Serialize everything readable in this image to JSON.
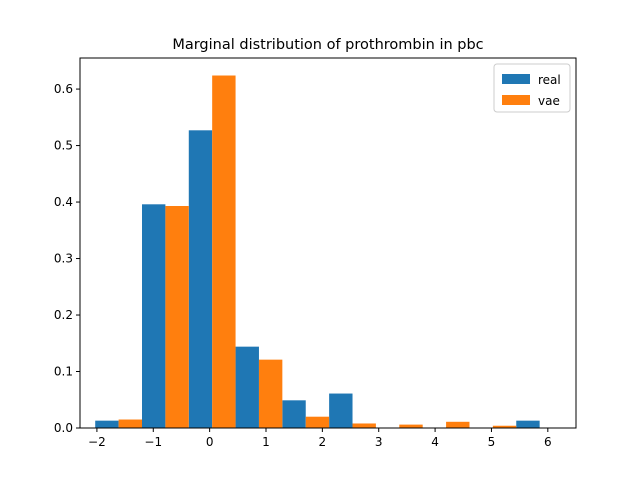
{
  "chart_data": {
    "type": "bar",
    "title": "Marginal distribution of prothrombin in pbc",
    "xlabel": "",
    "ylabel": "",
    "xlim": [
      -2.3,
      6.5
    ],
    "ylim": [
      0,
      0.655
    ],
    "x_ticks": [
      -2,
      -1,
      0,
      1,
      2,
      3,
      4,
      5,
      6
    ],
    "x_tick_labels": [
      "−2",
      "−1",
      "0",
      "1",
      "2",
      "3",
      "4",
      "5",
      "6"
    ],
    "y_ticks": [
      0.0,
      0.1,
      0.2,
      0.3,
      0.4,
      0.5,
      0.6
    ],
    "y_tick_labels": [
      "0.0",
      "0.1",
      "0.2",
      "0.3",
      "0.4",
      "0.5",
      "0.6"
    ],
    "bin_edges": [
      -2.03,
      -1.2,
      -0.37,
      0.46,
      1.29,
      2.12,
      2.95,
      3.78,
      4.61,
      5.44,
      6.27
    ],
    "series": [
      {
        "name": "real",
        "color": "#1f77b4",
        "values": [
          0.013,
          0.396,
          0.527,
          0.144,
          0.049,
          0.061,
          0.0,
          0.0,
          0.0,
          0.013
        ]
      },
      {
        "name": "vae",
        "color": "#ff7f0e",
        "values": [
          0.015,
          0.393,
          0.624,
          0.121,
          0.02,
          0.008,
          0.006,
          0.011,
          0.004,
          0.0
        ]
      }
    ],
    "legend_position": "upper right",
    "grid": false
  }
}
